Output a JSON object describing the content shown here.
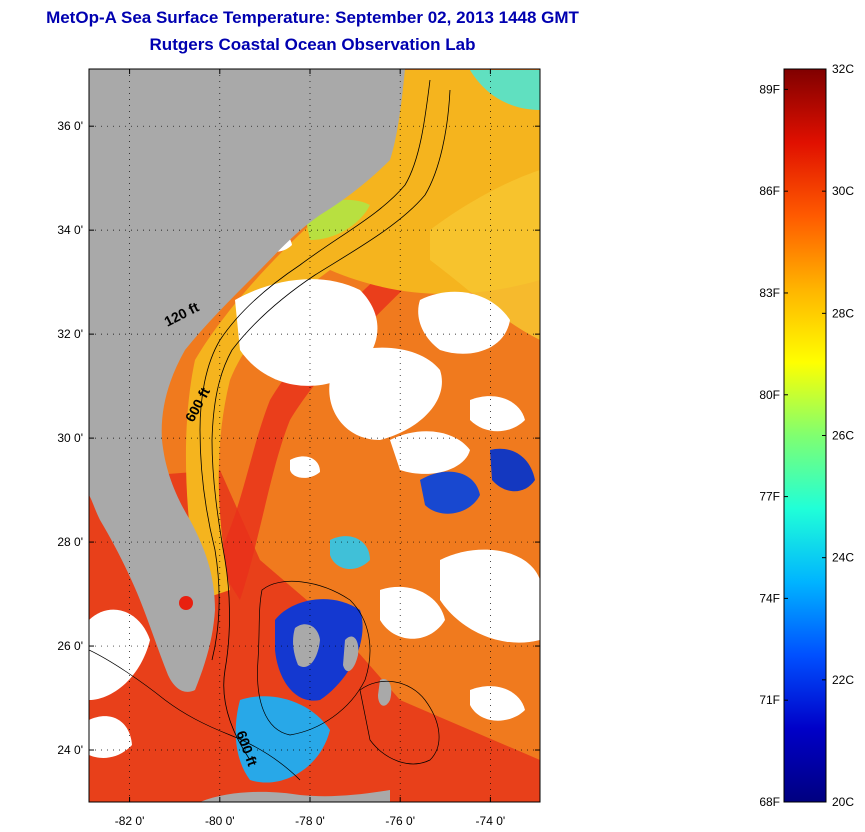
{
  "header": {
    "title": "MetOp-A Sea Surface Temperature:  September 02, 2013 1448 GMT",
    "subtitle": "Rutgers Coastal Ocean Observation Lab"
  },
  "map": {
    "lat_range": [
      23.0,
      37.1
    ],
    "lon_range": [
      -82.9,
      -72.9
    ],
    "lat_ticks": [
      {
        "value": 24,
        "label": "24 0'"
      },
      {
        "value": 26,
        "label": "26 0'"
      },
      {
        "value": 28,
        "label": "28 0'"
      },
      {
        "value": 30,
        "label": "30 0'"
      },
      {
        "value": 32,
        "label": "32 0'"
      },
      {
        "value": 34,
        "label": "34 0'"
      },
      {
        "value": 36,
        "label": "36 0'"
      }
    ],
    "lon_ticks": [
      {
        "value": -82,
        "label": "-82 0'"
      },
      {
        "value": -80,
        "label": "-80 0'"
      },
      {
        "value": -78,
        "label": "-78 0'"
      },
      {
        "value": -76,
        "label": "-76 0'"
      },
      {
        "value": -74,
        "label": "-74 0'"
      }
    ],
    "depth_labels": [
      {
        "text": "120 ft",
        "lon": -80.8,
        "lat": 32.3,
        "angle": -27
      },
      {
        "text": "600 ft",
        "lon": -80.4,
        "lat": 30.6,
        "angle": -62
      },
      {
        "text": "600 ft",
        "lon": -79.5,
        "lat": 24.0,
        "angle": 70
      }
    ],
    "grid": "dotted",
    "colors": {
      "land": "#a9a9a9",
      "cloud": "#ffffff",
      "ocean_warm": "#f07a1e",
      "ocean_coastal": "#f5b41e",
      "ocean_hot": "#e8301a",
      "ocean_cool": "#28a0e8",
      "ocean_cold": "#1428c8",
      "ocean_mild": "#a8e040"
    }
  },
  "colorbar": {
    "min_c": 20,
    "max_c": 32,
    "celsius_ticks": [
      {
        "value": 32,
        "label": "32C"
      },
      {
        "value": 30,
        "label": "30C"
      },
      {
        "value": 28,
        "label": "28C"
      },
      {
        "value": 26,
        "label": "26C"
      },
      {
        "value": 24,
        "label": "24C"
      },
      {
        "value": 22,
        "label": "22C"
      },
      {
        "value": 20,
        "label": "20C"
      }
    ],
    "fahrenheit_ticks": [
      {
        "value": 89,
        "label": "89F"
      },
      {
        "value": 86,
        "label": "86F"
      },
      {
        "value": 83,
        "label": "83F"
      },
      {
        "value": 80,
        "label": "80F"
      },
      {
        "value": 77,
        "label": "77F"
      },
      {
        "value": 74,
        "label": "74F"
      },
      {
        "value": 71,
        "label": "71F"
      },
      {
        "value": 68,
        "label": "68F"
      }
    ],
    "stops": [
      "#000080",
      "#0000c8",
      "#0050ff",
      "#00b4ff",
      "#20ffd8",
      "#80ff70",
      "#ffff00",
      "#ffb400",
      "#ff5a00",
      "#e01000",
      "#800000"
    ]
  }
}
